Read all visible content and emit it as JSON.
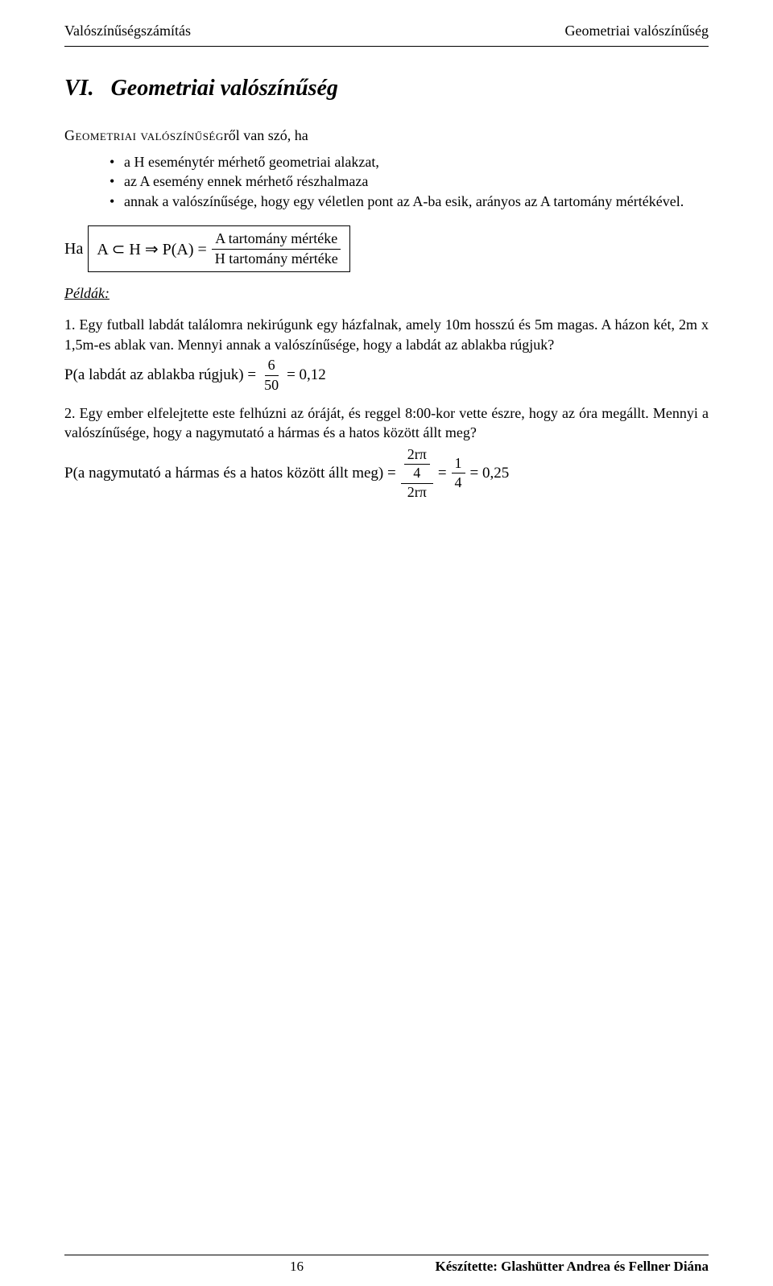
{
  "header": {
    "left": "Valószínűségszámítás",
    "right": "Geometriai valószínűség"
  },
  "chapter": {
    "number": "VI.",
    "title": "Geometriai valószínűség"
  },
  "intro": {
    "leadSmallcaps": "Geometriai valószínűség",
    "leadTail": "ről van szó, ha"
  },
  "bullets": [
    "a H eseménytér mérhető geometriai alakzat,",
    "az A esemény ennek mérhető részhalmaza",
    "annak a valószínűsége, hogy egy véletlen pont az  A-ba esik, arányos az A tartomány mértékével."
  ],
  "formula": {
    "prefix": "Ha",
    "body": "A ⊂ H ⇒ P(A) =",
    "num": "A tartomány mértéke",
    "den": "H tartomány mértéke"
  },
  "examplesHeader": "Példák:",
  "ex1": {
    "text": "1. Egy futball labdát találomra nekirúgunk egy házfalnak, amely 10m hosszú és 5m magas. A házon két, 2m x 1,5m-es ablak van. Mennyi annak a valószínűsége, hogy a labdát az ablakba rúgjuk?",
    "lhs": "P(a labdát az ablakba rúgjuk) =",
    "fracNum": "6",
    "fracDen": "50",
    "rhs": "= 0,12"
  },
  "ex2": {
    "text": "2. Egy ember elfelejtette este felhúzni az óráját, és reggel 8:00-kor vette észre, hogy az óra megállt. Mennyi a valószínűsége, hogy a nagymutató a hármas és a hatos között állt meg?",
    "lhs": "P(a nagymutató a hármas és a hatos között állt meg) =",
    "outerNumNum": "2rπ",
    "outerNumDen": "4",
    "outerDen": "2rπ",
    "mid": "=",
    "frac2Num": "1",
    "frac2Den": "4",
    "rhs": "= 0,25"
  },
  "footer": {
    "page": "16",
    "credit": "Készítette: Glashütter Andrea és Fellner Diána"
  }
}
